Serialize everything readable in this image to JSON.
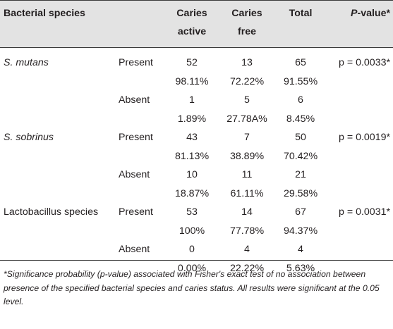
{
  "header": {
    "species": "Bacterial species",
    "caries_active_line1": "Caries",
    "caries_active_line2": "active",
    "caries_free_line1": "Caries",
    "caries_free_line2": "free",
    "total": "Total",
    "pvalue_italic": "P",
    "pvalue_rest": "-value*"
  },
  "groups": [
    {
      "species": "S. mutans",
      "species_italic": true,
      "pvalue": "p = 0.0033",
      "pvalue_mark": "*",
      "rows": [
        {
          "status": "Present",
          "count": [
            "52",
            "13",
            "65"
          ],
          "pct": [
            "98.11%",
            "72.22%",
            "91.55%"
          ]
        },
        {
          "status": "Absent",
          "count": [
            "1",
            "5",
            "6"
          ],
          "pct": [
            "1.89%",
            "27.78A%",
            "8.45%"
          ]
        }
      ]
    },
    {
      "species": "S. sobrinus",
      "species_italic": true,
      "pvalue": "p = 0.0019",
      "pvalue_mark": "*",
      "rows": [
        {
          "status": "Present",
          "count": [
            "43",
            "7",
            "50"
          ],
          "pct": [
            "81.13%",
            "38.89%",
            "70.42%"
          ]
        },
        {
          "status": "Absent",
          "count": [
            "10",
            "11",
            "21"
          ],
          "pct": [
            "18.87%",
            "61.11%",
            "29.58%"
          ]
        }
      ]
    },
    {
      "species": "Lactobacillus species",
      "species_italic": false,
      "pvalue": "p = 0.0031",
      "pvalue_mark": "*",
      "rows": [
        {
          "status": "Present",
          "count": [
            "53",
            "14",
            "67"
          ],
          "pct": [
            "100%",
            "77.78%",
            "94.37%"
          ]
        },
        {
          "status": "Absent",
          "count": [
            "0",
            "4",
            "4"
          ],
          "pct": [
            "0.00%",
            "22.22%",
            "5.63%"
          ]
        }
      ]
    }
  ],
  "footnote": "*Significance probability (p-value) associated with Fisher's exact test of no association between presence of the specified bacterial species and caries status. All results were significant at the 0.05 level."
}
